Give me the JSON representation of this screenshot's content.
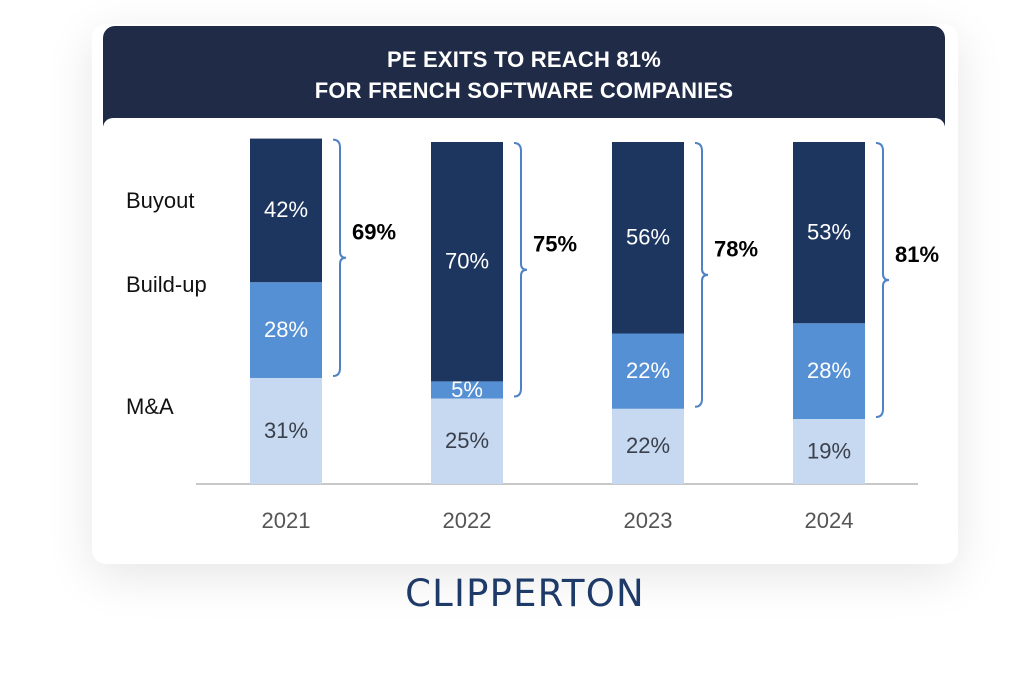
{
  "title": {
    "line1": "PE EXITS TO REACH 81%",
    "line2": "FOR FRENCH SOFTWARE COMPANIES"
  },
  "brand": "CLIPPERTON",
  "colors": {
    "header": "#1f2b47",
    "buyout": "#1d3660",
    "buildup": "#5590d4",
    "ma": "#c6d9f0",
    "bracket": "#4f82c4"
  },
  "chart_data": {
    "type": "bar",
    "stacked": true,
    "categories": [
      "2021",
      "2022",
      "2023",
      "2024"
    ],
    "series": [
      {
        "name": "M&A",
        "values": [
          31,
          25,
          22,
          19
        ]
      },
      {
        "name": "Build-up",
        "values": [
          28,
          5,
          22,
          28
        ]
      },
      {
        "name": "Buyout",
        "values": [
          42,
          70,
          56,
          53
        ]
      }
    ],
    "value_labels": {
      "M&A": [
        "31%",
        "25%",
        "22%",
        "19%"
      ],
      "Build-up": [
        "28%",
        "5%",
        "22%",
        "28%"
      ],
      "Buyout": [
        "42%",
        "70%",
        "56%",
        "53%"
      ]
    },
    "pe_totals": [
      "69%",
      "75%",
      "78%",
      "81%"
    ],
    "ylim": [
      0,
      100
    ],
    "legend_position": "left",
    "grid": false
  }
}
